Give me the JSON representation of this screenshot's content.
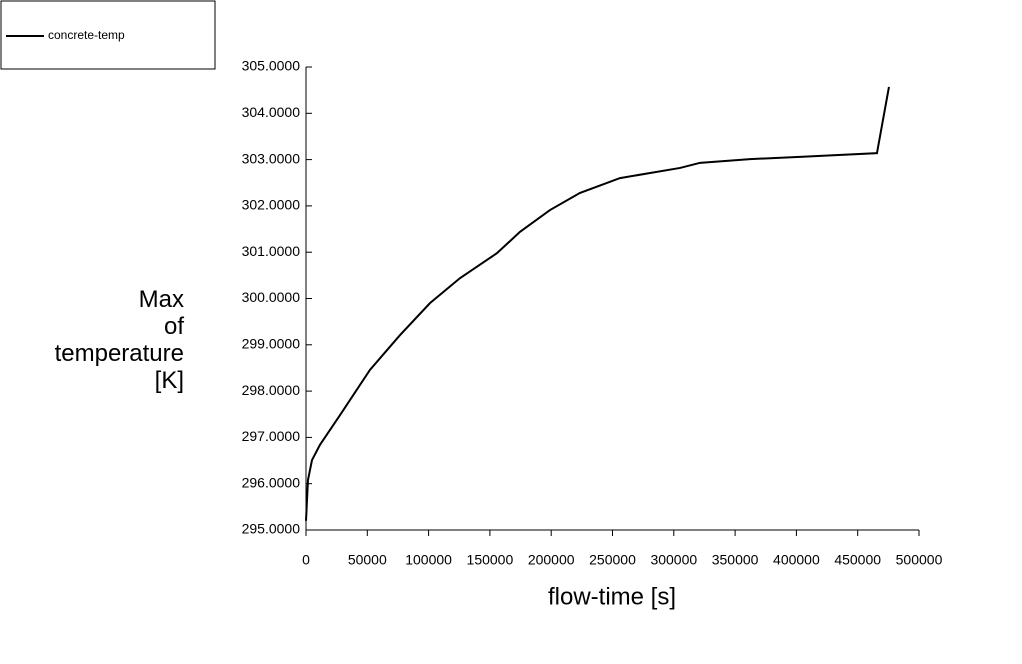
{
  "chart_data": {
    "type": "line",
    "xlabel": "flow-time [s]",
    "ylabel": "Max\nof\ntemperature\n[K]",
    "x": [
      0,
      1600,
      4900,
      11400,
      27700,
      52200,
      76700,
      101100,
      125600,
      155800,
      174600,
      199000,
      223500,
      256100,
      305100,
      321400,
      362200,
      402900,
      465700,
      475500
    ],
    "series": [
      {
        "name": "concrete-temp",
        "color": "#000000",
        "values": [
          295.2,
          296.08,
          296.51,
          296.84,
          297.48,
          298.46,
          299.21,
          299.9,
          300.44,
          300.98,
          301.44,
          301.91,
          302.28,
          302.6,
          302.82,
          302.93,
          303.01,
          303.06,
          303.14,
          304.57
        ]
      }
    ],
    "xlim": [
      0,
      500000
    ],
    "xticks": [
      0,
      50000,
      100000,
      150000,
      200000,
      250000,
      300000,
      350000,
      400000,
      450000,
      500000
    ],
    "ylim": [
      295,
      305
    ],
    "yticks": [
      {
        "value": 295,
        "label": "295.0000"
      },
      {
        "value": 296,
        "label": "296.0000"
      },
      {
        "value": 297,
        "label": "297.0000"
      },
      {
        "value": 298,
        "label": "298.0000"
      },
      {
        "value": 299,
        "label": "299.0000"
      },
      {
        "value": 300,
        "label": "300.0000"
      },
      {
        "value": 301,
        "label": "301.0000"
      },
      {
        "value": 302,
        "label": "302.0000"
      },
      {
        "value": 303,
        "label": "303.0000"
      },
      {
        "value": 304,
        "label": "304.0000"
      },
      {
        "value": 305,
        "label": "305.0000"
      }
    ],
    "grid": false,
    "legend": "top-left"
  }
}
